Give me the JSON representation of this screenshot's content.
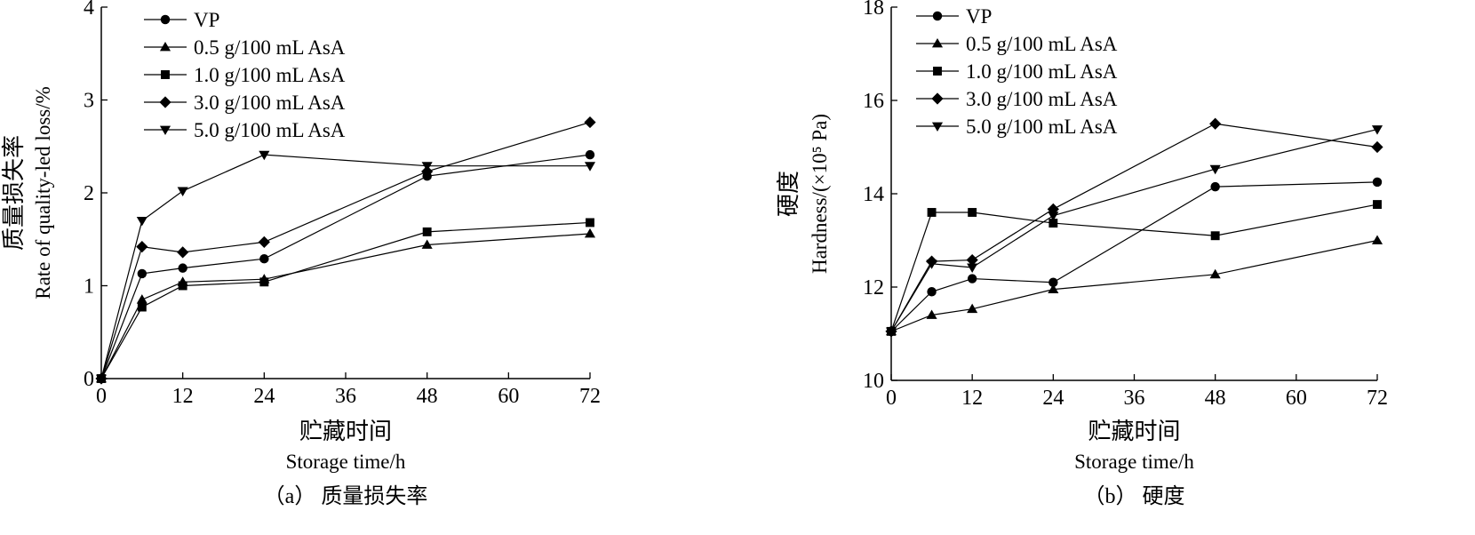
{
  "chart_data": [
    {
      "type": "line",
      "caption": "（a） 质量损失率",
      "xlabel_cn": "贮藏时间",
      "xlabel_en": "Storage time/h",
      "ylabel_cn": "质量损失率",
      "ylabel_en": "Rate of quality-led loss/%",
      "xlim": [
        0,
        72
      ],
      "ylim": [
        0,
        4
      ],
      "xticks": [
        0,
        12,
        24,
        36,
        48,
        60,
        72
      ],
      "yticks": [
        0,
        1,
        2,
        3,
        4
      ],
      "grid": false,
      "legend_position": "top-left",
      "x": [
        0,
        6,
        12,
        24,
        48,
        72
      ],
      "series": [
        {
          "name": "VP",
          "marker": "circle",
          "values": [
            0,
            1.13,
            1.19,
            1.29,
            2.18,
            2.41
          ]
        },
        {
          "name": "0.5 g/100 mL AsA",
          "marker": "triangle-up",
          "values": [
            0,
            0.85,
            1.04,
            1.07,
            1.44,
            1.56
          ]
        },
        {
          "name": "1.0 g/100 mL AsA",
          "marker": "square",
          "values": [
            0,
            0.77,
            1.0,
            1.04,
            1.58,
            1.68
          ]
        },
        {
          "name": "3.0 g/100 mL AsA",
          "marker": "diamond",
          "values": [
            0,
            1.42,
            1.36,
            1.47,
            2.23,
            2.76
          ]
        },
        {
          "name": "5.0 g/100 mL AsA",
          "marker": "triangle-down",
          "values": [
            0,
            1.7,
            2.02,
            2.41,
            2.29,
            2.29
          ]
        }
      ]
    },
    {
      "type": "line",
      "caption": "（b） 硬度",
      "xlabel_cn": "贮藏时间",
      "xlabel_en": "Storage time/h",
      "ylabel_cn": "硬度",
      "ylabel_en": "Hardness/(×10⁵ Pa)",
      "xlim": [
        0,
        72
      ],
      "ylim": [
        10,
        18
      ],
      "xticks": [
        0,
        12,
        24,
        36,
        48,
        60,
        72
      ],
      "yticks": [
        10,
        12,
        14,
        16,
        18
      ],
      "grid": false,
      "legend_position": "top-left",
      "x": [
        0,
        6,
        12,
        24,
        48,
        72
      ],
      "series": [
        {
          "name": "VP",
          "marker": "circle",
          "values": [
            11.05,
            11.9,
            12.18,
            12.1,
            14.15,
            14.25
          ]
        },
        {
          "name": "0.5 g/100 mL AsA",
          "marker": "triangle-up",
          "values": [
            11.05,
            11.4,
            11.53,
            11.95,
            12.27,
            13.0
          ]
        },
        {
          "name": "1.0 g/100 mL AsA",
          "marker": "square",
          "values": [
            11.05,
            13.6,
            13.6,
            13.37,
            13.1,
            13.77
          ]
        },
        {
          "name": "3.0 g/100 mL AsA",
          "marker": "diamond",
          "values": [
            11.05,
            12.55,
            12.58,
            13.67,
            15.5,
            15.0
          ]
        },
        {
          "name": "5.0 g/100 mL AsA",
          "marker": "triangle-down",
          "values": [
            11.05,
            12.5,
            12.42,
            13.53,
            14.53,
            15.38
          ]
        }
      ]
    }
  ]
}
